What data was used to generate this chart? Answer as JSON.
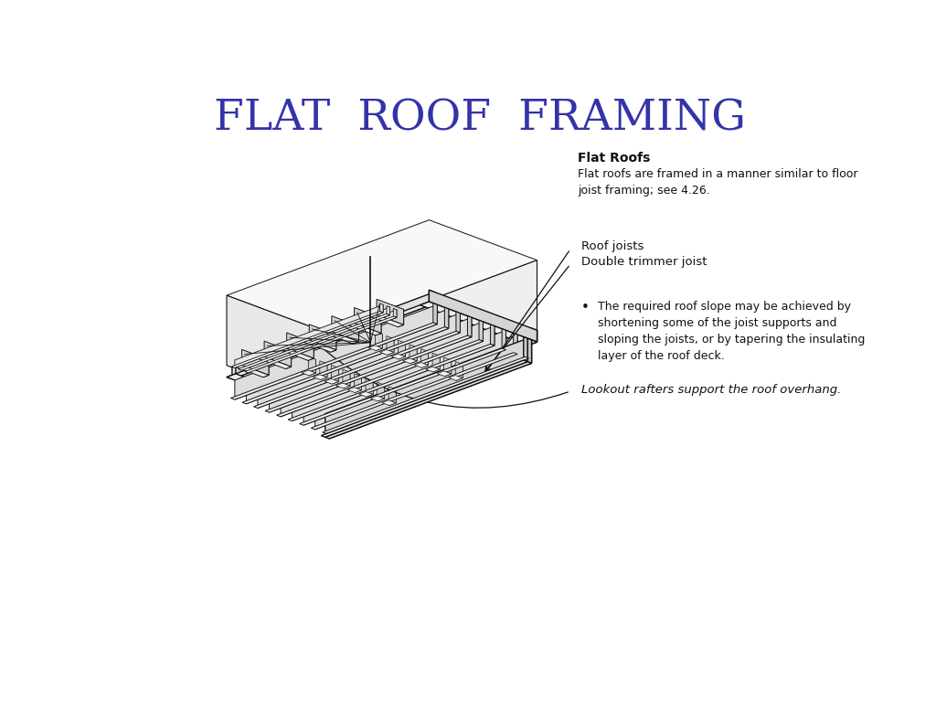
{
  "title": "FLAT  ROOF  FRAMING",
  "title_color": "#3333AA",
  "title_fontsize": 34,
  "bg_color": "#FFFFFF",
  "annotation_header": "Flat Roofs",
  "annotation_body": "Flat roofs are framed in a manner similar to floor\njoist framing; see 4.26.",
  "label1": "Roof joists",
  "label2": "Double trimmer joist",
  "bullet_text": "The required roof slope may be achieved by\nshortening some of the joist supports and\nsloping the joists, or by tapering the insulating\nlayer of the roof deck.",
  "label3": "Lookout rafters support the roof overhang.",
  "line_color": "#111111",
  "text_color": "#111111",
  "img_ox": 0.32,
  "img_oy": 0.52,
  "img_scale": 0.0042,
  "img_sx": 1.7,
  "img_sy": 0.9
}
